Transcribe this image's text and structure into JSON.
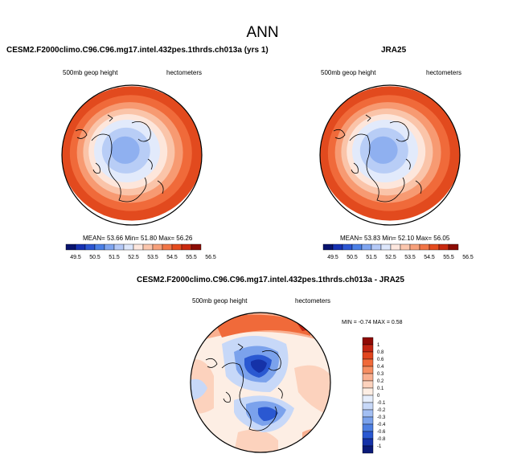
{
  "main_title": "ANN",
  "panel_left": {
    "title": "CESM2.F2000climo.C96.C96.mg17.intel.432pes.1thrds.ch013a (yrs 1)",
    "variable": "500mb geop height",
    "units": "hectometers",
    "stats": "MEAN= 53.66  Min= 51.80  Max= 56.26"
  },
  "panel_right": {
    "title": "JRA25",
    "variable": "500mb geop height",
    "units": "hectometers",
    "stats": "MEAN= 53.83  Min= 52.10  Max= 56.05"
  },
  "panel_diff": {
    "title": "CESM2.F2000climo.C96.C96.mg17.intel.432pes.1thrds.ch013a - JRA25",
    "variable": "500mb geop height",
    "units": "hectometers",
    "stats": "MIN =  -0.74 MAX =   0.58"
  },
  "colorbar_abs": {
    "labels": [
      "49.5",
      "50.5",
      "51.5",
      "52.5",
      "53.5",
      "54.5",
      "55.5",
      "56.5"
    ],
    "colors": [
      "#08136e",
      "#1631b3",
      "#2b55d2",
      "#4b7fe6",
      "#7fa5f0",
      "#b4c9f7",
      "#dce6fb",
      "#fde7de",
      "#fbc6ad",
      "#f7a07a",
      "#f27546",
      "#e54b1e",
      "#c9290f",
      "#8c0c05"
    ]
  },
  "colorbar_diff": {
    "labels": [
      "1",
      "0.8",
      "0.6",
      "0.4",
      "0.3",
      "0.2",
      "0.1",
      "0",
      "-0.1",
      "-0.2",
      "-0.3",
      "-0.4",
      "-0.6",
      "-0.8",
      "-1"
    ],
    "colors": [
      "#8f0a05",
      "#c22412",
      "#e1451e",
      "#f06a3a",
      "#f68e62",
      "#f9b091",
      "#fcd2bd",
      "#fdeee4",
      "#e6eefc",
      "#c7d8f8",
      "#a3bff3",
      "#7ba2ec",
      "#4e7fe2",
      "#2a58d1",
      "#1532a8",
      "#0a1a78"
    ]
  },
  "map_colors": {
    "abs": [
      "#e24a1e",
      "#f06a3a",
      "#f79a72",
      "#fac4a9",
      "#fde6db",
      "#e2eafb",
      "#b8cdf6",
      "#8fb0f0"
    ],
    "diff_blue": [
      "#c7d8f8",
      "#7ba2ec",
      "#2a58d1",
      "#1532a8"
    ],
    "diff_red": [
      "#f9b091",
      "#e1451e",
      "#c22412"
    ]
  }
}
